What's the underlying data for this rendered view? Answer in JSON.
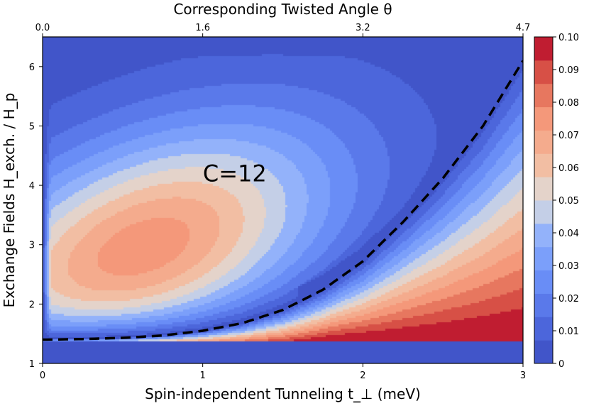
{
  "chart_data": {
    "type": "heatmap",
    "plot_style": "filled-contour",
    "title": "",
    "xlabel": "Spin-independent Tunneling t_⊥ (meV)",
    "ylabel": "Exchange Fields H_exch. / H_p",
    "top_xlabel": "Corresponding Twisted Angle θ",
    "xlim": [
      0,
      3
    ],
    "ylim": [
      1,
      6.5
    ],
    "x_ticks": [
      0,
      1,
      2,
      3
    ],
    "x_tick_labels": [
      "0",
      "1",
      "2",
      "3"
    ],
    "y_ticks": [
      1,
      2,
      3,
      4,
      5,
      6
    ],
    "y_tick_labels": [
      "1",
      "2",
      "3",
      "4",
      "5",
      "6"
    ],
    "top_ticks_at_x": [
      0,
      1,
      2,
      3
    ],
    "top_tick_labels": [
      "0.0",
      "1.6",
      "3.2",
      "4.7"
    ],
    "colorbar": {
      "min": 0,
      "max": 0.1,
      "ticks": [
        0,
        0.01,
        0.02,
        0.03,
        0.04,
        0.05,
        0.06,
        0.07,
        0.08,
        0.09,
        0.1
      ],
      "tick_labels": [
        "0",
        "0.01",
        "0.02",
        "0.03",
        "0.04",
        "0.05",
        "0.06",
        "0.07",
        "0.08",
        "0.09",
        "0.10"
      ],
      "levels": 14,
      "colormap": "coolwarm"
    },
    "phase_boundary": {
      "style": "dashed",
      "color": "#000000",
      "x": [
        0,
        0.25,
        0.5,
        0.75,
        1.0,
        1.25,
        1.5,
        1.75,
        2.0,
        2.25,
        2.5,
        2.75,
        3.0
      ],
      "y": [
        1.4,
        1.41,
        1.43,
        1.47,
        1.55,
        1.68,
        1.9,
        2.24,
        2.72,
        3.38,
        4.12,
        5.0,
        6.1
      ]
    },
    "annotations": [
      {
        "text": "C=12",
        "x": 1.2,
        "y": 4.2
      }
    ],
    "regions": [
      {
        "description": "broad maximum",
        "x": 0.62,
        "y": 2.9,
        "value": 0.075
      },
      {
        "description": "high-value band near lower boundary",
        "x_range": [
          1.8,
          3.0
        ],
        "y_range": [
          1.38,
          2.05
        ],
        "value": 0.1
      }
    ]
  }
}
